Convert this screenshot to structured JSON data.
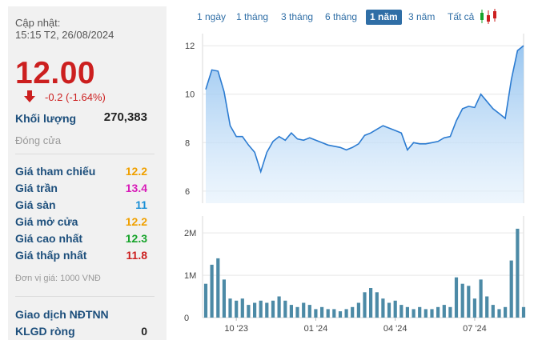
{
  "header": {
    "updated_label": "Cập nhật:",
    "updated_time": "15:15 T2, 26/08/2024"
  },
  "quote": {
    "price": "12.00",
    "change": "-0.2 (-1.64%)",
    "volume_label": "Khối lượng",
    "volume_value": "270,383",
    "close_label": "Đóng cửa"
  },
  "stats": [
    {
      "label": "Giá tham chiếu",
      "value": "12.2",
      "color": "#f0a000"
    },
    {
      "label": "Giá trần",
      "value": "13.4",
      "color": "#d81bb8"
    },
    {
      "label": "Giá sàn",
      "value": "11",
      "color": "#1a8fd6"
    },
    {
      "label": "Giá mở cửa",
      "value": "12.2",
      "color": "#f0a000"
    },
    {
      "label": "Giá cao nhất",
      "value": "12.3",
      "color": "#16a32a"
    },
    {
      "label": "Giá thấp nhất",
      "value": "11.8",
      "color": "#cc1f1f"
    }
  ],
  "unit_note": "Đơn vị giá: 1000 VNĐ",
  "foreign": {
    "title": "Giao dịch NĐTNN",
    "klgd_label": "KLGD ròng",
    "klgd_value": "0"
  },
  "ranges": [
    {
      "label": "1 ngày",
      "active": false
    },
    {
      "label": "1 tháng",
      "active": false
    },
    {
      "label": "3 tháng",
      "active": false
    },
    {
      "label": "6 tháng",
      "active": false
    },
    {
      "label": "1 năm",
      "active": true
    },
    {
      "label": "3 năm",
      "active": false
    },
    {
      "label": "Tất cả",
      "active": false
    }
  ],
  "icons": {
    "down_arrow": "arrow-down-icon",
    "candlestick": "candlestick-icon"
  },
  "colors": {
    "down": "#cc1f1f",
    "line": "#2b7bd1",
    "area": "#b5d6f5",
    "bars": "#4c8aa6"
  },
  "chart_data": [
    {
      "type": "area",
      "ylim": [
        5.5,
        12.5
      ],
      "yticks": [
        "6",
        "8",
        "10",
        "12"
      ],
      "ytick_values": [
        6,
        8,
        10,
        12
      ],
      "values": [
        10.2,
        11.0,
        10.95,
        10.1,
        8.7,
        8.25,
        8.25,
        7.9,
        7.6,
        6.8,
        7.6,
        8.05,
        8.25,
        8.1,
        8.4,
        8.15,
        8.1,
        8.2,
        8.1,
        8.0,
        7.9,
        7.85,
        7.8,
        7.7,
        7.8,
        7.95,
        8.3,
        8.4,
        8.55,
        8.7,
        8.6,
        8.5,
        8.4,
        7.7,
        8.0,
        7.95,
        7.95,
        8.0,
        8.05,
        8.2,
        8.25,
        8.9,
        9.4,
        9.5,
        9.45,
        10.0,
        9.7,
        9.4,
        9.2,
        9.0,
        10.6,
        11.8,
        12.0
      ]
    },
    {
      "type": "bar",
      "ylim": [
        0,
        2.4
      ],
      "yticks": [
        "0",
        "1M",
        "2M"
      ],
      "ytick_values": [
        0,
        1,
        2
      ],
      "xticks": [
        "10 '23",
        "01 '24",
        "04 '24",
        "07 '24"
      ],
      "xtick_positions": [
        5,
        18,
        31,
        44
      ],
      "values": [
        0.8,
        1.25,
        1.4,
        0.9,
        0.45,
        0.4,
        0.45,
        0.3,
        0.35,
        0.4,
        0.35,
        0.4,
        0.5,
        0.4,
        0.3,
        0.25,
        0.35,
        0.3,
        0.2,
        0.25,
        0.2,
        0.2,
        0.15,
        0.2,
        0.25,
        0.35,
        0.6,
        0.7,
        0.6,
        0.45,
        0.35,
        0.4,
        0.3,
        0.25,
        0.2,
        0.25,
        0.2,
        0.2,
        0.25,
        0.3,
        0.25,
        0.95,
        0.8,
        0.75,
        0.45,
        0.9,
        0.5,
        0.3,
        0.2,
        0.25,
        1.35,
        2.1,
        0.25
      ]
    }
  ]
}
